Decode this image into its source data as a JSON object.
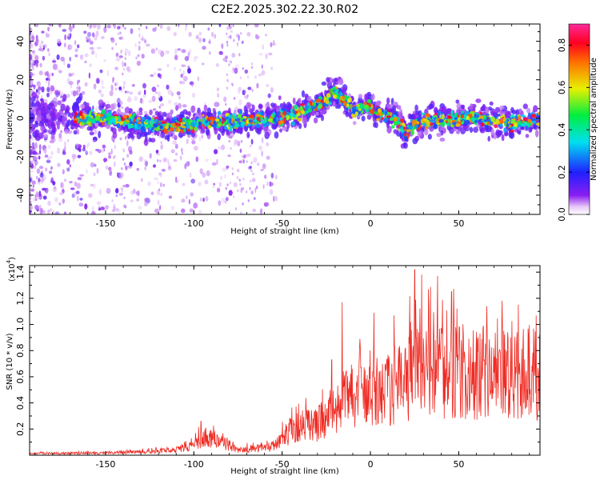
{
  "title": "C2E2.2025.302.22.30.R02",
  "colors": {
    "snr_line": "#ee2a22",
    "axis": "#000000",
    "background": "#ffffff"
  },
  "chart_data": [
    {
      "type": "heatmap",
      "title": "C2E2.2025.302.22.30.R02",
      "xlabel": "Height of straight line (km)",
      "ylabel": "Frequency (Hz)",
      "xlim": [
        -193,
        96
      ],
      "ylim": [
        -50,
        49
      ],
      "x_ticks": [
        -150,
        -100,
        -50,
        0,
        50
      ],
      "y_ticks": [
        -40,
        -20,
        0,
        20,
        40
      ],
      "colorbar": {
        "label": "Normalized spectral amplitude",
        "range": [
          0.0,
          0.9
        ],
        "ticks": [
          0.0,
          0.2,
          0.4,
          0.6,
          0.8
        ],
        "colormap": "rainbow"
      },
      "center_frequency_trace": {
        "x": [
          -193,
          -170,
          -150,
          -130,
          -110,
          -90,
          -70,
          -50,
          -35,
          -25,
          -20,
          -10,
          0,
          5,
          15,
          20,
          25,
          40,
          60,
          80,
          96
        ],
        "y": [
          0,
          0,
          0,
          -3,
          -4,
          -2,
          -1,
          0,
          5,
          9,
          14,
          5,
          6,
          3,
          0,
          -8,
          -3,
          -1,
          0,
          -3,
          -1
        ]
      }
    },
    {
      "type": "line",
      "xlabel": "Height of straight line (km)",
      "ylabel": "SNR (10 * v/v)",
      "y_scale_note": "(x10",
      "y_scale_exponent": "4",
      "xlim": [
        -193,
        96
      ],
      "ylim": [
        0,
        1.45
      ],
      "x_ticks": [
        -150,
        -100,
        -50,
        0,
        50
      ],
      "y_ticks": [
        0.2,
        0.4,
        0.6,
        0.8,
        1.0,
        1.2,
        1.4
      ],
      "series": [
        {
          "name": "SNR",
          "envelope_x": [
            -193,
            -150,
            -130,
            -110,
            -100,
            -95,
            -85,
            -75,
            -65,
            -55,
            -50,
            -45,
            -40,
            -30,
            -25,
            -20,
            -15,
            -10,
            -5,
            0,
            5,
            10,
            20,
            30,
            40,
            50,
            60,
            70,
            80,
            96
          ],
          "envelope_y": [
            0.015,
            0.02,
            0.03,
            0.05,
            0.09,
            0.17,
            0.13,
            0.05,
            0.06,
            0.08,
            0.15,
            0.24,
            0.27,
            0.29,
            0.36,
            0.45,
            0.5,
            0.55,
            0.55,
            0.58,
            0.6,
            0.62,
            0.72,
            0.76,
            0.8,
            0.78,
            0.75,
            0.72,
            0.75,
            0.75
          ],
          "peaks": [
            {
              "x": -96,
              "y": 0.26
            },
            {
              "x": -22,
              "y": 0.73
            },
            {
              "x": -16,
              "y": 1.17
            },
            {
              "x": 2,
              "y": 1.09
            },
            {
              "x": 25,
              "y": 1.42
            },
            {
              "x": 29,
              "y": 1.38
            },
            {
              "x": 38,
              "y": 1.37
            },
            {
              "x": 46,
              "y": 1.25
            }
          ]
        }
      ]
    }
  ]
}
